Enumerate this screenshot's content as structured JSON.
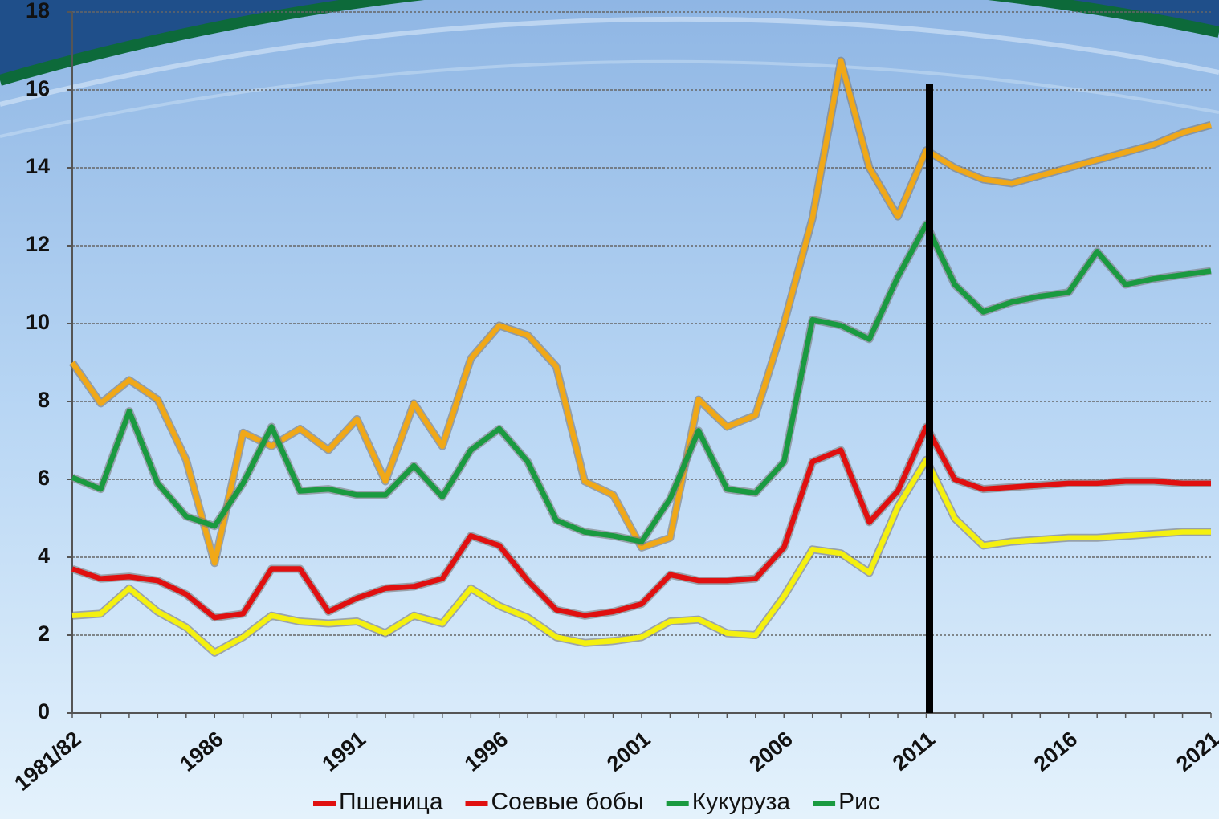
{
  "chart_data": {
    "type": "line",
    "categories": [
      "1981/82",
      null,
      null,
      null,
      null,
      "1986",
      null,
      null,
      null,
      null,
      "1991",
      null,
      null,
      null,
      null,
      "1996",
      null,
      null,
      null,
      null,
      "2001",
      null,
      null,
      null,
      null,
      "2006",
      null,
      null,
      null,
      null,
      "2011",
      null,
      null,
      null,
      null,
      "2016",
      null,
      null,
      null,
      null,
      "2021"
    ],
    "series": [
      {
        "name": "Пшеница",
        "color": "#f0a818",
        "legend_color": "#e01010",
        "values": [
          9.0,
          7.95,
          8.55,
          8.05,
          6.5,
          3.85,
          7.2,
          6.85,
          7.3,
          6.75,
          7.55,
          5.95,
          7.95,
          6.85,
          9.1,
          9.95,
          9.7,
          8.9,
          5.95,
          5.6,
          4.25,
          4.5,
          8.05,
          7.35,
          7.65,
          10.0,
          12.7,
          16.75,
          14.0,
          12.75,
          14.45,
          14.0,
          13.7,
          13.6,
          13.8,
          14.0,
          14.2,
          14.4,
          14.6,
          14.9,
          15.1
        ]
      },
      {
        "name": "Соевые бобы",
        "color": "#e01010",
        "legend_color": "#e01010",
        "values": [
          3.7,
          3.45,
          3.5,
          3.4,
          3.05,
          2.45,
          2.55,
          3.7,
          3.7,
          2.6,
          2.95,
          3.2,
          3.25,
          3.45,
          4.55,
          4.3,
          3.4,
          2.65,
          2.5,
          2.6,
          2.8,
          3.55,
          3.4,
          3.4,
          3.45,
          4.25,
          6.45,
          6.75,
          4.9,
          5.7,
          7.35,
          6.0,
          5.75,
          5.8,
          5.85,
          5.9,
          5.9,
          5.95,
          5.95,
          5.9,
          5.9
        ]
      },
      {
        "name": "Кукуруза",
        "color": "#1a9a40",
        "legend_color": "#1a9a40",
        "values": [
          6.05,
          5.75,
          7.75,
          5.9,
          5.05,
          4.8,
          5.9,
          7.35,
          5.7,
          5.75,
          5.6,
          5.6,
          6.35,
          5.55,
          6.75,
          7.3,
          6.45,
          4.95,
          4.65,
          4.55,
          4.4,
          5.5,
          7.25,
          5.75,
          5.65,
          6.45,
          10.1,
          9.95,
          9.6,
          11.2,
          12.55,
          11.0,
          10.3,
          10.55,
          10.7,
          10.8,
          11.85,
          11.0,
          11.15,
          11.25,
          11.35
        ]
      },
      {
        "name": "Рис",
        "color": "#f4f010",
        "legend_color": "#1a9a40",
        "values": [
          2.5,
          2.55,
          3.2,
          2.6,
          2.2,
          1.55,
          1.95,
          2.5,
          2.35,
          2.3,
          2.35,
          2.05,
          2.5,
          2.3,
          3.2,
          2.75,
          2.45,
          1.95,
          1.8,
          1.85,
          1.95,
          2.35,
          2.4,
          2.05,
          2.0,
          3.0,
          4.2,
          4.1,
          3.6,
          5.3,
          6.5,
          5.0,
          4.3,
          4.4,
          4.45,
          4.5,
          4.5,
          4.55,
          4.6,
          4.65,
          4.65
        ]
      }
    ],
    "ylim": [
      0,
      18
    ],
    "yticks": [
      0,
      2,
      4,
      6,
      8,
      10,
      12,
      14,
      16,
      18
    ],
    "grid": true,
    "marker_category": "2011",
    "legend": "bottom"
  }
}
